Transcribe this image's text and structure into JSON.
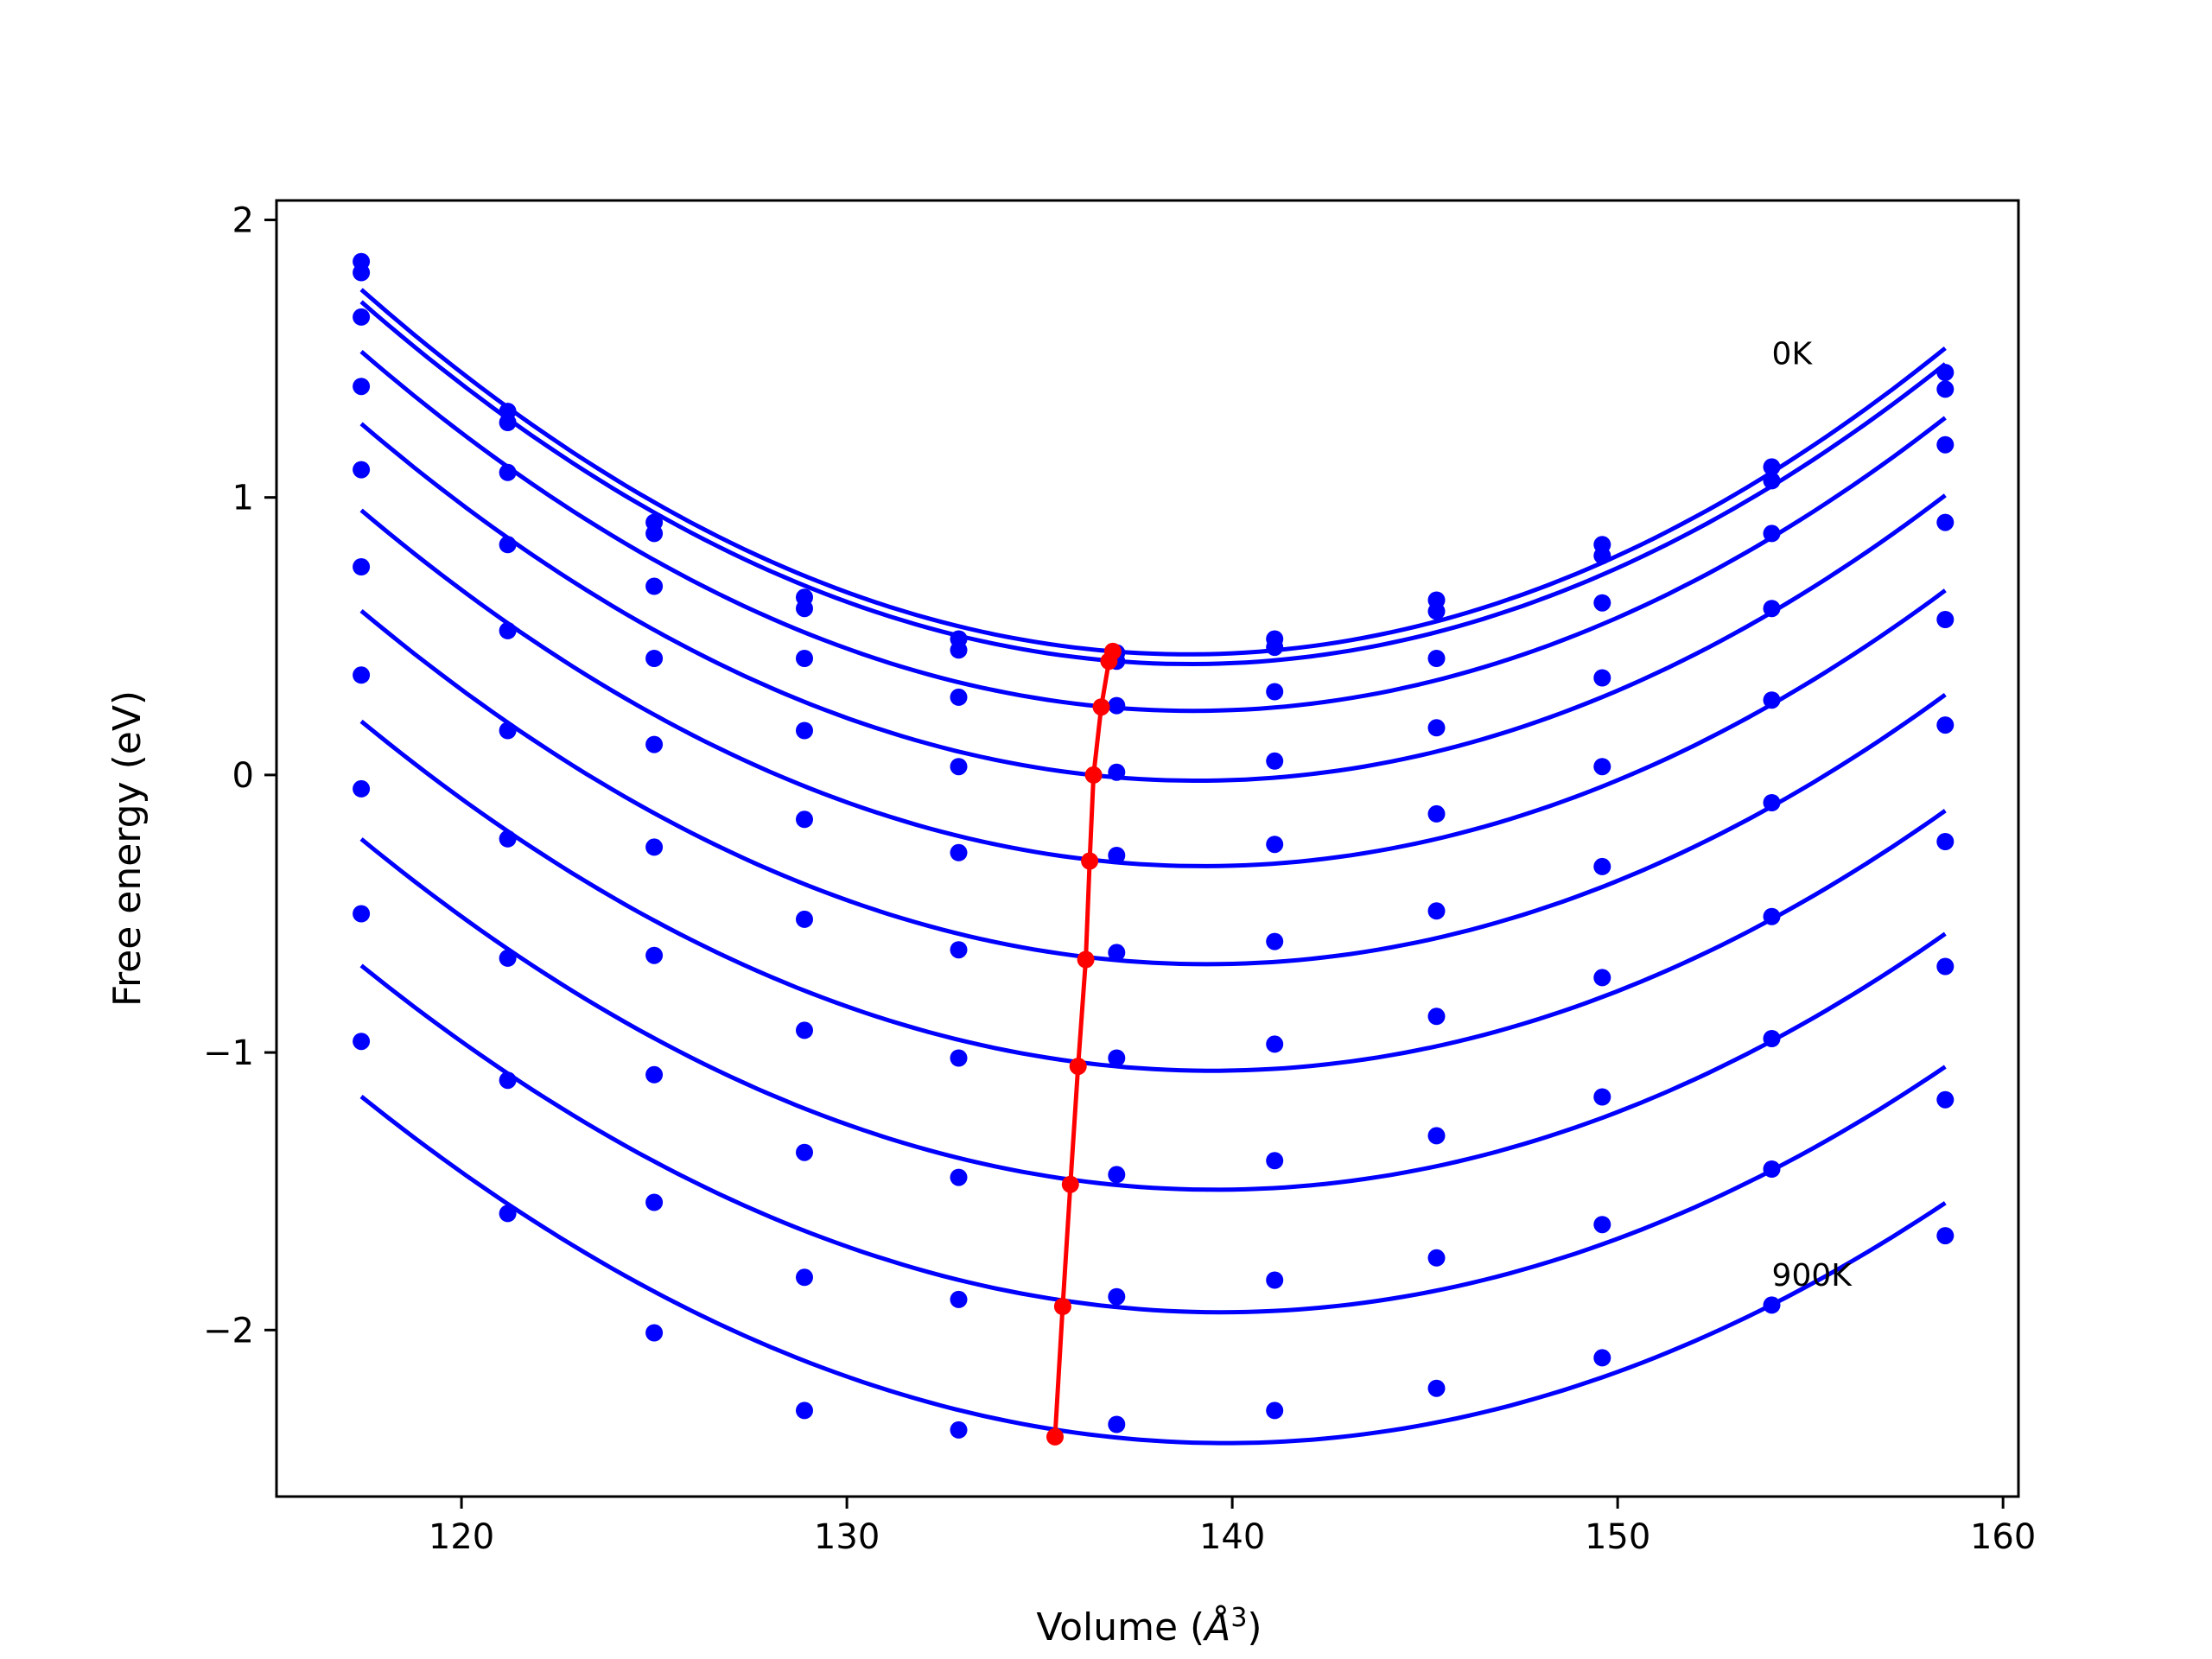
{
  "chart_data": {
    "type": "line",
    "title": "",
    "xlabel_main": "Volume (",
    "xlabel_unit": "Å",
    "xlabel_exp": "3",
    "xlabel_close": ")",
    "ylabel": "Free energy (eV)",
    "xlim": [
      115.2,
      160.4
    ],
    "ylim": [
      -2.6,
      2.07
    ],
    "xticks": [
      120,
      130,
      140,
      150,
      160
    ],
    "xtick_labels": [
      "120",
      "130",
      "140",
      "150",
      "160"
    ],
    "yticks": [
      2,
      1,
      0,
      -1,
      -2
    ],
    "ytick_labels": [
      "2",
      "1",
      "0",
      "−1",
      "−2"
    ],
    "grid": false,
    "colors": {
      "fit": "#0000ff",
      "points": "#0000ff",
      "minima": "#ff0000"
    },
    "x": [
      117.4,
      121.2,
      125.0,
      128.9,
      132.9,
      137.0,
      141.1,
      145.3,
      149.6,
      154.0,
      158.5
    ],
    "series": [
      {
        "values": [
          1.85,
          1.31,
          0.91,
          0.64,
          0.49,
          0.44,
          0.49,
          0.63,
          0.83,
          1.11,
          1.45
        ]
      },
      {
        "values": [
          1.81,
          1.27,
          0.87,
          0.6,
          0.45,
          0.41,
          0.46,
          0.59,
          0.79,
          1.06,
          1.39
        ]
      },
      {
        "values": [
          1.65,
          1.09,
          0.68,
          0.42,
          0.28,
          0.25,
          0.3,
          0.42,
          0.62,
          0.87,
          1.19
        ]
      },
      {
        "values": [
          1.4,
          0.83,
          0.42,
          0.16,
          0.03,
          0.01,
          0.05,
          0.17,
          0.35,
          0.6,
          0.91
        ]
      },
      {
        "values": [
          1.1,
          0.52,
          0.11,
          -0.16,
          -0.28,
          -0.29,
          -0.25,
          -0.14,
          0.03,
          0.27,
          0.56
        ]
      },
      {
        "values": [
          0.75,
          0.16,
          -0.26,
          -0.52,
          -0.63,
          -0.64,
          -0.6,
          -0.49,
          -0.33,
          -0.1,
          0.18
        ]
      },
      {
        "values": [
          0.36,
          -0.23,
          -0.65,
          -0.92,
          -1.02,
          -1.02,
          -0.97,
          -0.87,
          -0.73,
          -0.51,
          -0.24
        ]
      },
      {
        "values": [
          -0.05,
          -0.66,
          -1.08,
          -1.36,
          -1.45,
          -1.44,
          -1.39,
          -1.3,
          -1.16,
          -0.95,
          -0.69
        ]
      },
      {
        "values": [
          -0.5,
          -1.1,
          -1.54,
          -1.81,
          -1.89,
          -1.88,
          -1.82,
          -1.74,
          -1.62,
          -1.42,
          -1.17
        ]
      },
      {
        "values": [
          -0.96,
          -1.58,
          -2.01,
          -2.29,
          -2.36,
          -2.34,
          -2.29,
          -2.21,
          -2.1,
          -1.91,
          -1.66
        ]
      }
    ],
    "minima": {
      "x": [
        136.9,
        136.8,
        136.6,
        136.4,
        136.3,
        136.2,
        136.0,
        135.8,
        135.6,
        135.4
      ],
      "y": [
        0.445,
        0.41,
        0.245,
        0.0,
        -0.31,
        -0.665,
        -1.05,
        -1.475,
        -1.915,
        -2.385
      ]
    },
    "annotations": [
      {
        "text": "0K",
        "x": 154.0,
        "y": 1.48
      },
      {
        "text": "900K",
        "x": 154.0,
        "y": -1.84
      }
    ]
  }
}
